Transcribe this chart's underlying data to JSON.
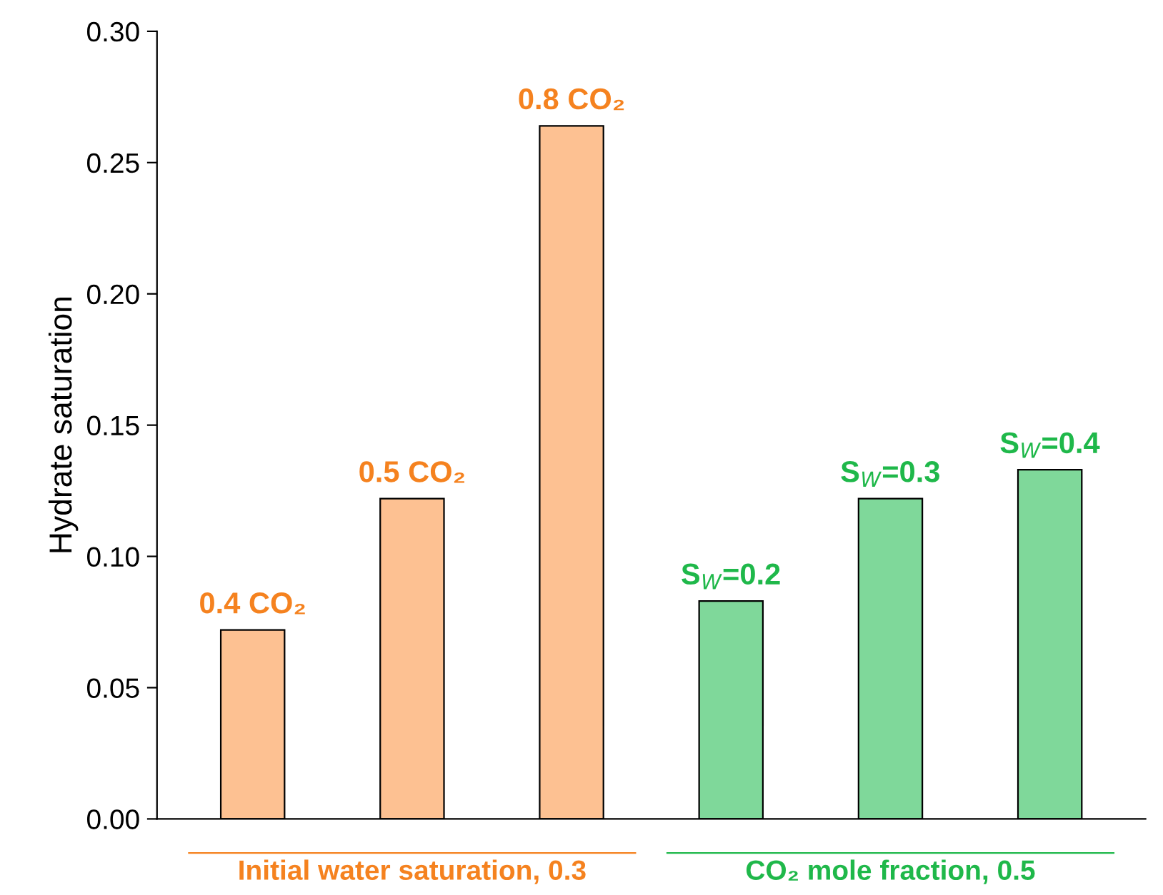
{
  "chart_data": {
    "type": "bar",
    "ylabel": "Hydrate saturation",
    "categories": [
      "0.4 CO₂",
      "0.5 CO₂",
      "0.8 CO₂",
      "S$_{W}$=0.2",
      "S$_{W}$=0.3",
      "S$_{W}$=0.4"
    ],
    "values": [
      0.072,
      0.122,
      0.264,
      0.083,
      0.122,
      0.133
    ],
    "colors": [
      "#fdc192",
      "#fdc192",
      "#fdc192",
      "#7fd89a",
      "#7fd89a",
      "#7fd89a"
    ],
    "ylim": [
      0,
      0.3
    ],
    "yticks": [
      {
        "value": 0,
        "label": "0.00"
      },
      {
        "value": 0.05,
        "label": "0.05"
      },
      {
        "value": 0.1,
        "label": "0.10"
      },
      {
        "value": 0.15,
        "label": "0.15"
      },
      {
        "value": 0.2,
        "label": "0.20"
      },
      {
        "value": 0.25,
        "label": "0.25"
      },
      {
        "value": 0.3,
        "label": "0.30"
      }
    ],
    "annotations": [
      "Initial water saturation, 0.3",
      "CO₂ mole fraction, 0.5"
    ],
    "grid": false,
    "legend": false
  }
}
